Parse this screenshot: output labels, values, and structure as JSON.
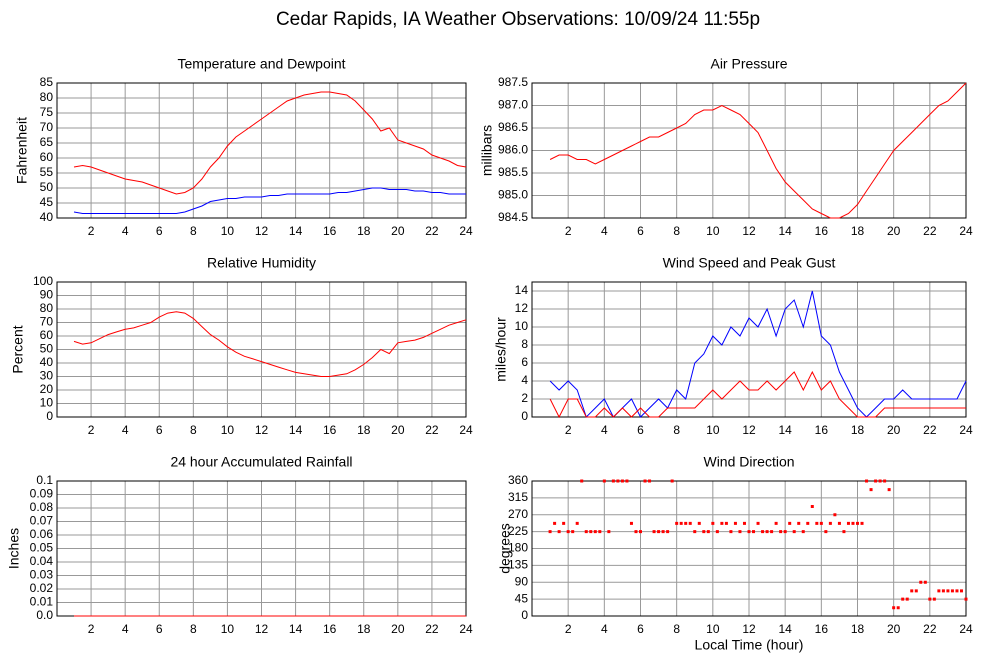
{
  "title": "Cedar Rapids, IA Weather Observations: 10/09/24 11:55p",
  "chart_data": [
    {
      "type": "line",
      "title": "Temperature and Dewpoint",
      "ylabel": "Fahrenheit",
      "x": [
        1,
        1.5,
        2,
        2.5,
        3,
        3.5,
        4,
        4.5,
        5,
        5.5,
        6,
        6.5,
        7,
        7.5,
        8,
        8.5,
        9,
        9.5,
        10,
        10.5,
        11,
        11.5,
        12,
        12.5,
        13,
        13.5,
        14,
        14.5,
        15,
        15.5,
        16,
        16.5,
        17,
        17.5,
        18,
        18.5,
        19,
        19.5,
        20,
        20.5,
        21,
        21.5,
        22,
        22.5,
        23,
        23.5,
        24
      ],
      "series": [
        {
          "color": "#ff0000",
          "values": [
            57,
            57.5,
            57,
            56,
            55,
            54,
            53,
            52.5,
            52,
            51,
            50,
            49,
            48,
            48.5,
            50,
            53,
            57,
            60,
            64,
            67,
            69,
            71,
            73,
            75,
            77,
            79,
            80,
            81,
            81.5,
            82,
            82,
            81.5,
            81,
            79,
            76,
            73,
            69,
            70,
            66,
            65,
            64,
            63,
            61,
            60,
            59,
            57.5,
            57
          ]
        },
        {
          "color": "#0000ff",
          "values": [
            42,
            41.5,
            41.5,
            41.5,
            41.5,
            41.5,
            41.5,
            41.5,
            41.5,
            41.5,
            41.5,
            41.5,
            41.5,
            42,
            43,
            44,
            45.5,
            46,
            46.5,
            46.5,
            47,
            47,
            47,
            47.5,
            47.5,
            48,
            48,
            48,
            48,
            48,
            48,
            48.5,
            48.5,
            49,
            49.5,
            50,
            50,
            49.5,
            49.5,
            49.5,
            49,
            49,
            48.5,
            48.5,
            48,
            48,
            48
          ]
        }
      ],
      "xlim": [
        0,
        24
      ],
      "xticks": [
        2,
        4,
        6,
        8,
        10,
        12,
        14,
        16,
        18,
        20,
        22,
        24
      ],
      "ylim": [
        40,
        85
      ],
      "yticks": [
        40,
        45,
        50,
        55,
        60,
        65,
        70,
        75,
        80,
        85
      ],
      "grid": true
    },
    {
      "type": "line",
      "title": "Air Pressure",
      "ylabel": "millibars",
      "x": [
        1,
        1.5,
        2,
        2.5,
        3,
        3.5,
        4,
        4.5,
        5,
        5.5,
        6,
        6.5,
        7,
        7.5,
        8,
        8.5,
        9,
        9.5,
        10,
        10.5,
        11,
        11.5,
        12,
        12.5,
        13,
        13.5,
        14,
        14.5,
        15,
        15.5,
        16,
        16.5,
        17,
        17.5,
        18,
        18.5,
        19,
        19.5,
        20,
        20.5,
        21,
        21.5,
        22,
        22.5,
        23,
        23.5,
        24
      ],
      "series": [
        {
          "color": "#ff0000",
          "values": [
            985.8,
            985.9,
            985.9,
            985.8,
            985.8,
            985.7,
            985.8,
            985.9,
            986.0,
            986.1,
            986.2,
            986.3,
            986.3,
            986.4,
            986.5,
            986.6,
            986.8,
            986.9,
            986.9,
            987.0,
            986.9,
            986.8,
            986.6,
            986.4,
            986.0,
            985.6,
            985.3,
            985.1,
            984.9,
            984.7,
            984.6,
            984.5,
            984.5,
            984.6,
            984.8,
            985.1,
            985.4,
            985.7,
            986.0,
            986.2,
            986.4,
            986.6,
            986.8,
            987.0,
            987.1,
            987.3,
            987.5
          ]
        }
      ],
      "xlim": [
        0,
        24
      ],
      "xticks": [
        2,
        4,
        6,
        8,
        10,
        12,
        14,
        16,
        18,
        20,
        22,
        24
      ],
      "ylim": [
        984.5,
        987.5
      ],
      "yticks": [
        984.5,
        {
          "value": 985,
          "label": "985.0"
        },
        985.5,
        {
          "value": 986,
          "label": "986.0"
        },
        986.5,
        {
          "value": 987,
          "label": "987.0"
        },
        987.5
      ],
      "grid": true
    },
    {
      "type": "line",
      "title": "Relative Humidity",
      "ylabel": "Percent",
      "x": [
        1,
        1.5,
        2,
        2.5,
        3,
        3.5,
        4,
        4.5,
        5,
        5.5,
        6,
        6.5,
        7,
        7.5,
        8,
        8.5,
        9,
        9.5,
        10,
        10.5,
        11,
        11.5,
        12,
        12.5,
        13,
        13.5,
        14,
        14.5,
        15,
        15.5,
        16,
        16.5,
        17,
        17.5,
        18,
        18.5,
        19,
        19.5,
        20,
        20.5,
        21,
        21.5,
        22,
        22.5,
        23,
        23.5,
        24
      ],
      "series": [
        {
          "color": "#ff0000",
          "values": [
            56,
            54,
            55,
            58,
            61,
            63,
            65,
            66,
            68,
            70,
            74,
            77,
            78,
            77,
            73,
            67,
            61,
            57,
            52,
            48,
            45,
            43,
            41,
            39,
            37,
            35,
            33,
            32,
            31,
            30,
            30,
            31,
            32,
            35,
            39,
            44,
            50,
            47,
            55,
            56,
            57,
            59,
            62,
            65,
            68,
            70,
            72
          ]
        }
      ],
      "xlim": [
        0,
        24
      ],
      "xticks": [
        2,
        4,
        6,
        8,
        10,
        12,
        14,
        16,
        18,
        20,
        22,
        24
      ],
      "ylim": [
        0,
        100
      ],
      "yticks": [
        0,
        10,
        20,
        30,
        40,
        50,
        60,
        70,
        80,
        90,
        100
      ],
      "grid": true
    },
    {
      "type": "line",
      "title": "Wind Speed and Peak Gust",
      "ylabel": "miles/hour",
      "x": [
        1,
        1.5,
        2,
        2.5,
        3,
        3.5,
        4,
        4.5,
        5,
        5.5,
        6,
        6.5,
        7,
        7.5,
        8,
        8.5,
        9,
        9.5,
        10,
        10.5,
        11,
        11.5,
        12,
        12.5,
        13,
        13.5,
        14,
        14.5,
        15,
        15.5,
        16,
        16.5,
        17,
        17.5,
        18,
        18.5,
        19,
        19.5,
        20,
        20.5,
        21,
        21.5,
        22,
        22.5,
        23,
        23.5,
        24
      ],
      "series": [
        {
          "color": "#0000ff",
          "values": [
            4,
            3,
            4,
            3,
            0,
            1,
            2,
            0,
            1,
            2,
            0,
            1,
            2,
            1,
            3,
            2,
            6,
            7,
            9,
            8,
            10,
            9,
            11,
            10,
            12,
            9,
            12,
            13,
            10,
            14,
            9,
            8,
            5,
            3,
            1,
            0,
            1,
            2,
            2,
            3,
            2,
            2,
            2,
            2,
            2,
            2,
            4
          ]
        },
        {
          "color": "#ff0000",
          "values": [
            2,
            0,
            2,
            2,
            0,
            0,
            1,
            0,
            1,
            0,
            1,
            0,
            0,
            1,
            1,
            1,
            1,
            2,
            3,
            2,
            3,
            4,
            3,
            3,
            4,
            3,
            4,
            5,
            3,
            5,
            3,
            4,
            2,
            1,
            0,
            0,
            0,
            1,
            1,
            1,
            1,
            1,
            1,
            1,
            1,
            1,
            1
          ]
        }
      ],
      "xlim": [
        0,
        24
      ],
      "xticks": [
        2,
        4,
        6,
        8,
        10,
        12,
        14,
        16,
        18,
        20,
        22,
        24
      ],
      "ylim": [
        0,
        15
      ],
      "yticks": [
        0,
        2,
        4,
        6,
        8,
        10,
        12,
        14
      ],
      "grid": true
    },
    {
      "type": "line",
      "title": "24 hour Accumulated Rainfall",
      "ylabel": "Inches",
      "x": [
        1,
        24
      ],
      "series": [
        {
          "color": "#ff0000",
          "values": [
            0,
            0
          ]
        }
      ],
      "xlim": [
        0,
        24
      ],
      "xticks": [
        2,
        4,
        6,
        8,
        10,
        12,
        14,
        16,
        18,
        20,
        22,
        24
      ],
      "ylim": [
        0,
        0.1
      ],
      "yticks": [
        {
          "value": 0,
          "label": "0.0"
        },
        0.01,
        0.02,
        0.03,
        0.04,
        0.05,
        0.06,
        0.07,
        0.08,
        0.09,
        0.1
      ],
      "grid": true
    },
    {
      "type": "scatter",
      "title": "Wind Direction",
      "ylabel": "degrees",
      "xlabel": "Local Time (hour)",
      "x": [
        1,
        1.25,
        1.5,
        1.75,
        2,
        2.25,
        2.5,
        2.75,
        3,
        3.25,
        3.5,
        3.75,
        4,
        4.25,
        4.5,
        4.75,
        5,
        5.25,
        5.5,
        5.75,
        6,
        6.25,
        6.5,
        6.75,
        7,
        7.25,
        7.5,
        7.75,
        8,
        8.25,
        8.5,
        8.75,
        9,
        9.25,
        9.5,
        9.75,
        10,
        10.25,
        10.5,
        10.75,
        11,
        11.25,
        11.5,
        11.75,
        12,
        12.25,
        12.5,
        12.75,
        13,
        13.25,
        13.5,
        13.75,
        14,
        14.25,
        14.5,
        14.75,
        15,
        15.25,
        15.5,
        15.75,
        16,
        16.25,
        16.5,
        16.75,
        17,
        17.25,
        17.5,
        17.75,
        18,
        18.25,
        18.5,
        18.75,
        19,
        19.25,
        19.5,
        19.75,
        20,
        20.25,
        20.5,
        20.75,
        21,
        21.25,
        21.5,
        21.75,
        22,
        22.25,
        22.5,
        22.75,
        23,
        23.25,
        23.5,
        23.75,
        24
      ],
      "series": [
        {
          "color": "#ff0000",
          "values": [
            225,
            247,
            225,
            247,
            225,
            225,
            247,
            360,
            225,
            225,
            225,
            225,
            360,
            225,
            360,
            360,
            360,
            360,
            247,
            225,
            225,
            360,
            360,
            225,
            225,
            225,
            225,
            360,
            247,
            247,
            247,
            247,
            225,
            247,
            225,
            225,
            247,
            225,
            247,
            247,
            225,
            247,
            225,
            247,
            225,
            225,
            247,
            225,
            225,
            225,
            247,
            225,
            225,
            247,
            225,
            247,
            225,
            247,
            292,
            247,
            247,
            225,
            247,
            270,
            247,
            225,
            247,
            247,
            247,
            247,
            360,
            337,
            360,
            360,
            360,
            337,
            22,
            22,
            45,
            45,
            67,
            67,
            90,
            90,
            45,
            45,
            67,
            67,
            67,
            67,
            67,
            67,
            45
          ]
        }
      ],
      "xlim": [
        0,
        24
      ],
      "xticks": [
        2,
        4,
        6,
        8,
        10,
        12,
        14,
        16,
        18,
        20,
        22,
        24
      ],
      "ylim": [
        0,
        360
      ],
      "yticks": [
        0,
        45,
        90,
        135,
        180,
        225,
        270,
        315,
        360
      ],
      "grid": true
    }
  ]
}
